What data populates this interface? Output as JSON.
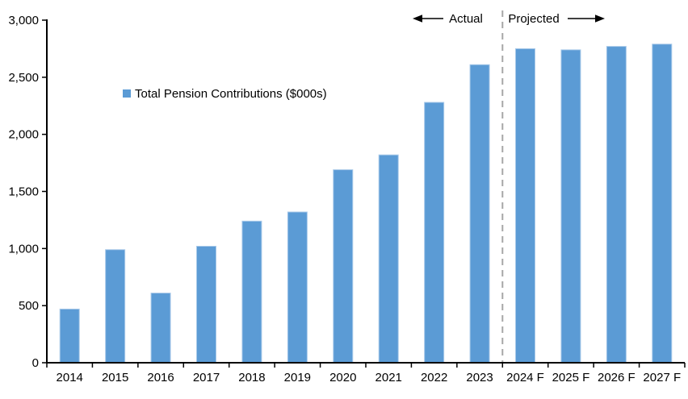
{
  "chart_data": {
    "type": "bar",
    "title": "",
    "legend": "Total Pension Contributions ($000s)",
    "categories": [
      "2014",
      "2015",
      "2016",
      "2017",
      "2018",
      "2019",
      "2020",
      "2021",
      "2022",
      "2023",
      "2024 F",
      "2025 F",
      "2026 F",
      "2027 F"
    ],
    "series": [
      {
        "name": "Total Pension Contributions ($000s)",
        "values": [
          470,
          990,
          610,
          1020,
          1240,
          1320,
          1690,
          1820,
          2280,
          2610,
          2750,
          2740,
          2770,
          2790
        ]
      }
    ],
    "xlabel": "",
    "ylabel": "",
    "ylim": [
      0,
      3000
    ],
    "ytick_step": 500,
    "yticks": [
      "0",
      "500",
      "1,000",
      "1,500",
      "2,000",
      "2,500",
      "3,000"
    ],
    "grid": false,
    "legend_position": "inside-upper-left",
    "annotations": {
      "actual_label": "Actual",
      "projected_label": "Projected",
      "divider_after_category": "2023"
    },
    "colors": {
      "bar": "#5B9BD5",
      "bar_edge": "#A8C9E9",
      "axis": "#000000",
      "divider": "#A6A6A6",
      "text": "#000000",
      "background": "#FFFFFF"
    }
  }
}
